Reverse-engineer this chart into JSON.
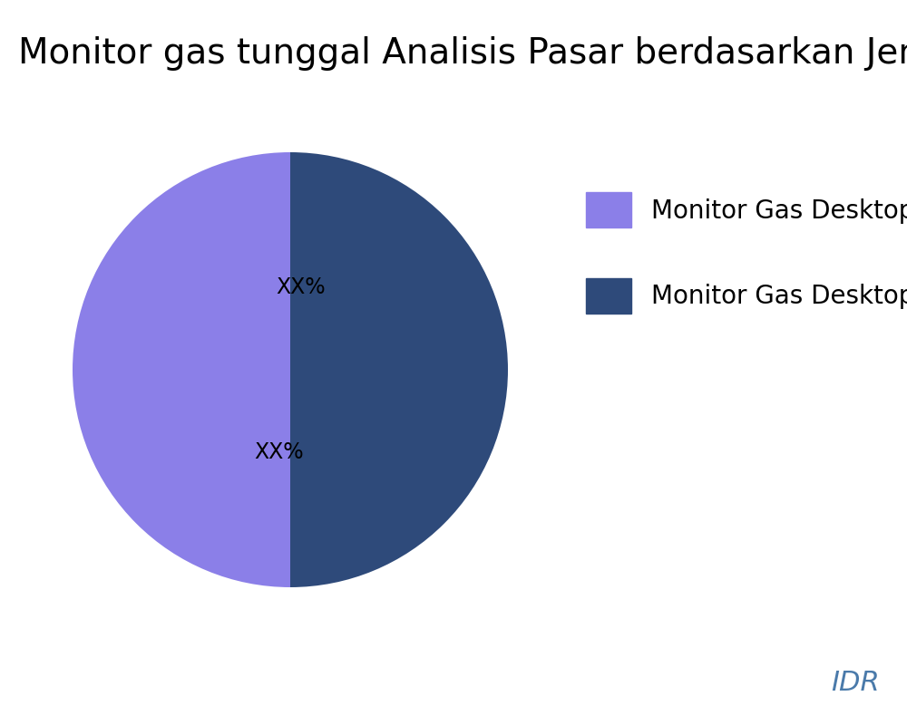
{
  "title": "Monitor gas tunggal Analisis Pasar berdasarkan Jenis",
  "slices": [
    50,
    50
  ],
  "colors": [
    "#2E4A7A",
    "#8B7FE8"
  ],
  "legend_labels": [
    "Monitor Gas Desktop",
    "Monitor Gas Desktop"
  ],
  "legend_colors": [
    "#8B7FE8",
    "#2E4A7A"
  ],
  "autopct_labels": [
    "XX%",
    "XX%"
  ],
  "watermark": "IDR",
  "watermark_color": "#4A7AAA",
  "title_fontsize": 28,
  "legend_fontsize": 20,
  "autopct_fontsize": 17,
  "background_color": "#ffffff"
}
